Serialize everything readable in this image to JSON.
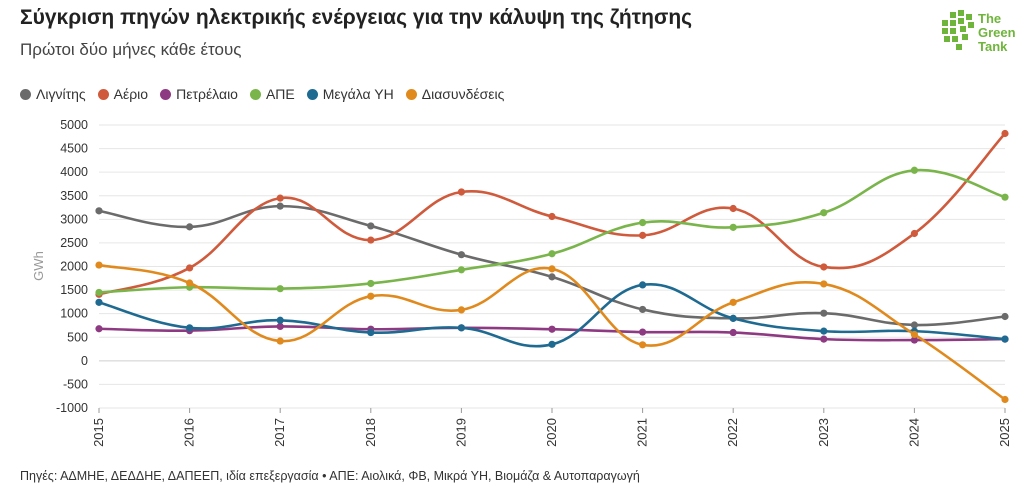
{
  "header": {
    "title": "Σύγκριση πηγών ηλεκτρικής ενέργειας για την κάλυψη της ζήτησης",
    "subtitle": "Πρώτοι δύο μήνες κάθε έτους"
  },
  "logo": {
    "line1": "The",
    "line2": "Green",
    "line3": "Tank",
    "color": "#6fb53b"
  },
  "footer": {
    "source": "Πηγές: ΑΔΜΗΕ, ΔΕΔΔΗΕ, ΔΑΠΕΕΠ, ιδία επεξεργασία • ΑΠΕ: Αιολικά, ΦΒ, Μικρά ΥΗ, Βιομάζα & Αυτοπαραγωγή"
  },
  "chart_data": {
    "type": "line",
    "ylabel": "GWh",
    "xlabel": "",
    "x": [
      "2015",
      "2016",
      "2017",
      "2018",
      "2019",
      "2020",
      "2021",
      "2022",
      "2023",
      "2024",
      "2025"
    ],
    "ylim": [
      -1000,
      5000
    ],
    "yticks": [
      "5000",
      "4500",
      "4000",
      "3500",
      "3000",
      "2500",
      "2000",
      "1500",
      "1000",
      "500",
      "0",
      "-500",
      "-1000"
    ],
    "grid": true,
    "legend_position": "top-left",
    "series": [
      {
        "name": "Λιγνίτης",
        "color": "#6b6b6b",
        "values": [
          3180,
          2840,
          3280,
          2860,
          2250,
          1780,
          1090,
          900,
          1010,
          760,
          940
        ]
      },
      {
        "name": "Αέριο",
        "color": "#cf5a3c",
        "values": [
          1410,
          1970,
          3450,
          2560,
          3580,
          3060,
          2660,
          3230,
          1990,
          2700,
          4820
        ]
      },
      {
        "name": "Πετρέλαιο",
        "color": "#8e3a82",
        "values": [
          680,
          640,
          730,
          670,
          700,
          670,
          610,
          600,
          460,
          440,
          460
        ]
      },
      {
        "name": "ΑΠΕ",
        "color": "#79b54a",
        "values": [
          1450,
          1560,
          1530,
          1640,
          1930,
          2270,
          2930,
          2830,
          3140,
          4040,
          3470
        ]
      },
      {
        "name": "Μεγάλα ΥΗ",
        "color": "#1f6a91",
        "values": [
          1240,
          700,
          860,
          600,
          700,
          350,
          1610,
          900,
          630,
          630,
          460
        ]
      },
      {
        "name": "Διασυνδέσεις",
        "color": "#e08a1e",
        "values": [
          2030,
          1650,
          420,
          1370,
          1080,
          1950,
          340,
          1240,
          1630,
          560,
          -820
        ]
      }
    ]
  }
}
